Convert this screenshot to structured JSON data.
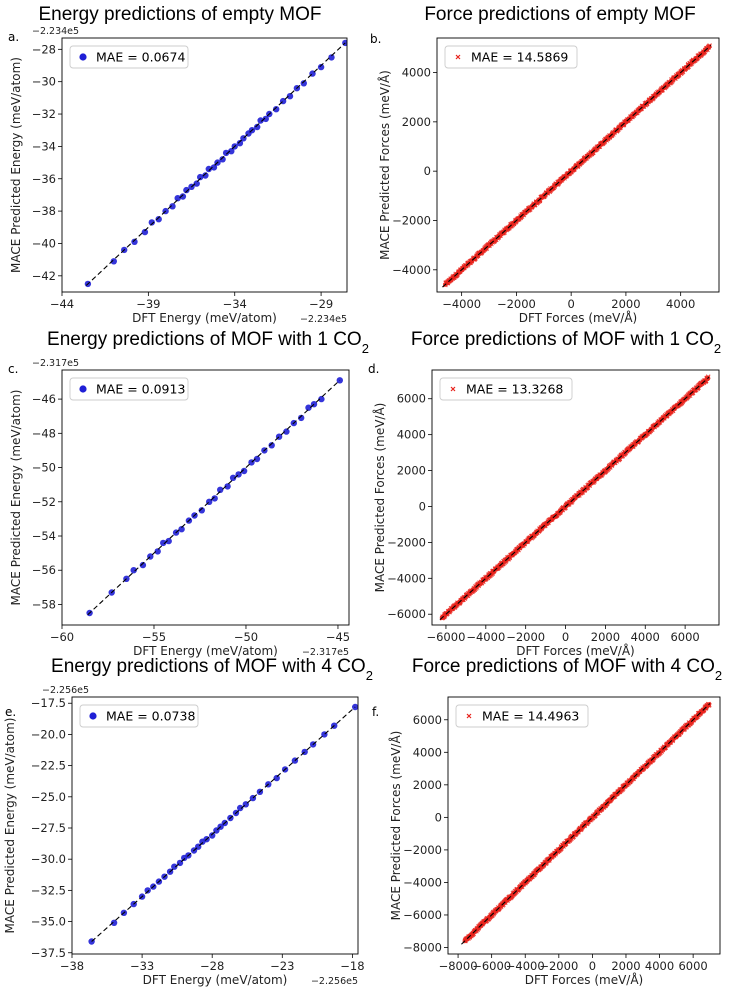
{
  "chart_data": [
    {
      "id": "a",
      "type": "scatter",
      "panel_label": "a.",
      "title": "Energy predictions of empty MOF",
      "xlabel": "DFT Energy (meV/atom)",
      "ylabel": "MACE Predicted Energy (meV/atom)",
      "x_offset_label": "−2.234e5",
      "y_offset_label": "−2.234e5",
      "xlim": [
        -44,
        -27.5
      ],
      "ylim": [
        -43,
        -27.3
      ],
      "xticks": [
        -44,
        -39,
        -34,
        -29
      ],
      "yticks": [
        -42,
        -40,
        -38,
        -36,
        -34,
        -32,
        -30,
        -28
      ],
      "legend": "MAE = 0.0674",
      "legend_position": "top-left",
      "marker": "circle",
      "color": "#1f1fd6",
      "reference_line": [
        -42.6,
        -27.6
      ],
      "points": [
        [
          -42.5,
          -42.5
        ],
        [
          -41.0,
          -41.1
        ],
        [
          -40.4,
          -40.4
        ],
        [
          -39.8,
          -39.9
        ],
        [
          -39.2,
          -39.3
        ],
        [
          -38.8,
          -38.7
        ],
        [
          -38.4,
          -38.5
        ],
        [
          -38.0,
          -38.0
        ],
        [
          -37.6,
          -37.7
        ],
        [
          -37.3,
          -37.2
        ],
        [
          -37.0,
          -37.1
        ],
        [
          -36.8,
          -36.7
        ],
        [
          -36.5,
          -36.5
        ],
        [
          -36.2,
          -36.3
        ],
        [
          -36.0,
          -35.9
        ],
        [
          -35.7,
          -35.8
        ],
        [
          -35.5,
          -35.4
        ],
        [
          -35.2,
          -35.3
        ],
        [
          -35.0,
          -35.0
        ],
        [
          -34.7,
          -34.8
        ],
        [
          -34.5,
          -34.4
        ],
        [
          -34.2,
          -34.3
        ],
        [
          -34.0,
          -34.0
        ],
        [
          -33.7,
          -33.8
        ],
        [
          -33.5,
          -33.5
        ],
        [
          -33.2,
          -33.2
        ],
        [
          -33.0,
          -33.0
        ],
        [
          -32.7,
          -32.8
        ],
        [
          -32.5,
          -32.4
        ],
        [
          -32.2,
          -32.3
        ],
        [
          -32.0,
          -32.0
        ],
        [
          -31.6,
          -31.7
        ],
        [
          -31.2,
          -31.2
        ],
        [
          -30.8,
          -30.9
        ],
        [
          -30.4,
          -30.4
        ],
        [
          -30.0,
          -30.1
        ],
        [
          -29.5,
          -29.5
        ],
        [
          -29.0,
          -29.1
        ],
        [
          -28.4,
          -28.5
        ],
        [
          -27.6,
          -27.6
        ]
      ]
    },
    {
      "id": "b",
      "type": "scatter",
      "panel_label": "b.",
      "title": "Force predictions of empty MOF",
      "xlabel": "DFT Forces (meV/Å)",
      "ylabel": "MACE Predicted Forces (meV/Å)",
      "xlim": [
        -4900,
        5400
      ],
      "ylim": [
        -4900,
        5400
      ],
      "xticks": [
        -4000,
        -2000,
        0,
        2000,
        4000
      ],
      "yticks": [
        -4000,
        -2000,
        0,
        2000,
        4000
      ],
      "legend": "MAE = 14.5869",
      "legend_position": "top-left",
      "marker": "cross",
      "color": "#e8231c",
      "reference_line": [
        -4700,
        5100
      ],
      "range": [
        -4600,
        5050
      ]
    },
    {
      "id": "c",
      "type": "scatter",
      "panel_label": "c.",
      "title": "Energy predictions of MOF with 1 CO",
      "title_sub": "2",
      "xlabel": "DFT Energy (meV/atom)",
      "ylabel": "MACE Predicted Energy (meV/atom)",
      "x_offset_label": "−2.317e5",
      "y_offset_label": "−2.317e5",
      "xlim": [
        -60,
        -44.4
      ],
      "ylim": [
        -59.2,
        -44.3
      ],
      "xticks": [
        -60,
        -55,
        -50,
        -45
      ],
      "yticks": [
        -58,
        -56,
        -54,
        -52,
        -50,
        -48,
        -46
      ],
      "legend": "MAE = 0.0913",
      "legend_position": "top-left",
      "marker": "circle",
      "color": "#1f1fd6",
      "reference_line": [
        -58.6,
        -44.9
      ],
      "points": [
        [
          -58.5,
          -58.5
        ],
        [
          -57.3,
          -57.3
        ],
        [
          -56.5,
          -56.5
        ],
        [
          -56.1,
          -56.0
        ],
        [
          -55.6,
          -55.7
        ],
        [
          -55.2,
          -55.2
        ],
        [
          -54.8,
          -54.9
        ],
        [
          -54.5,
          -54.4
        ],
        [
          -54.2,
          -54.3
        ],
        [
          -53.8,
          -53.8
        ],
        [
          -53.5,
          -53.6
        ],
        [
          -53.1,
          -53.1
        ],
        [
          -52.8,
          -52.8
        ],
        [
          -52.4,
          -52.5
        ],
        [
          -52.0,
          -52.0
        ],
        [
          -51.7,
          -51.8
        ],
        [
          -51.4,
          -51.3
        ],
        [
          -51.0,
          -51.1
        ],
        [
          -50.7,
          -50.6
        ],
        [
          -50.4,
          -50.4
        ],
        [
          -50.1,
          -50.2
        ],
        [
          -49.7,
          -49.7
        ],
        [
          -49.4,
          -49.5
        ],
        [
          -49.0,
          -49.0
        ],
        [
          -48.6,
          -48.7
        ],
        [
          -48.2,
          -48.2
        ],
        [
          -47.8,
          -47.9
        ],
        [
          -47.4,
          -47.4
        ],
        [
          -47.0,
          -47.1
        ],
        [
          -46.6,
          -46.5
        ],
        [
          -46.3,
          -46.3
        ],
        [
          -45.9,
          -46.0
        ],
        [
          -44.9,
          -44.9
        ]
      ]
    },
    {
      "id": "d",
      "type": "scatter",
      "panel_label": "d.",
      "title": "Force predictions of MOF with 1 CO",
      "title_sub": "2",
      "xlabel": "DFT Forces (meV/Å)",
      "ylabel": "MACE Predicted Forces (meV/Å)",
      "xlim": [
        -6700,
        7700
      ],
      "ylim": [
        -6600,
        7600
      ],
      "xticks": [
        -6000,
        -4000,
        -2000,
        0,
        2000,
        4000,
        6000
      ],
      "yticks": [
        -6000,
        -4000,
        -2000,
        0,
        2000,
        4000,
        6000
      ],
      "legend": "MAE = 13.3268",
      "legend_position": "top-left",
      "marker": "cross",
      "color": "#e8231c",
      "reference_line": [
        -6300,
        7200
      ],
      "range": [
        -6200,
        7150
      ]
    },
    {
      "id": "e",
      "type": "scatter",
      "panel_label": "e.",
      "title": "Energy predictions of MOF with 4 CO",
      "title_sub": "2",
      "xlabel": "DFT Energy (meV/atom)",
      "ylabel": "MACE Predicted Energy (meV/atom)",
      "x_offset_label": "−2.256e5",
      "y_offset_label": "−2.256e5",
      "xlim": [
        -38,
        -17.6
      ],
      "ylim": [
        -37.6,
        -17
      ],
      "xticks": [
        -38,
        -33,
        -28,
        -23,
        -18
      ],
      "yticks": [
        -37.5,
        -35.0,
        -32.5,
        -30.0,
        -27.5,
        -25.0,
        -22.5,
        -20.0,
        -17.5
      ],
      "ytick_labels": [
        "−37.5",
        "−35.0",
        "−32.5",
        "−30.0",
        "−27.5",
        "−25.0",
        "−22.5",
        "−20.0",
        "−17.5"
      ],
      "legend": "MAE = 0.0738",
      "legend_position": "top-left",
      "marker": "circle",
      "color": "#1f1fd6",
      "reference_line": [
        -36.6,
        -17.8
      ],
      "points": [
        [
          -36.6,
          -36.6
        ],
        [
          -35.0,
          -35.1
        ],
        [
          -34.3,
          -34.3
        ],
        [
          -33.6,
          -33.6
        ],
        [
          -33.0,
          -33.0
        ],
        [
          -32.6,
          -32.5
        ],
        [
          -32.2,
          -32.2
        ],
        [
          -31.8,
          -31.8
        ],
        [
          -31.4,
          -31.4
        ],
        [
          -31.0,
          -31.0
        ],
        [
          -30.7,
          -30.6
        ],
        [
          -30.3,
          -30.3
        ],
        [
          -30.0,
          -29.9
        ],
        [
          -29.7,
          -29.7
        ],
        [
          -29.3,
          -29.3
        ],
        [
          -29.0,
          -29.0
        ],
        [
          -28.7,
          -28.6
        ],
        [
          -28.4,
          -28.4
        ],
        [
          -28.0,
          -28.1
        ],
        [
          -27.7,
          -27.7
        ],
        [
          -27.4,
          -27.4
        ],
        [
          -27.1,
          -27.1
        ],
        [
          -26.7,
          -26.7
        ],
        [
          -26.3,
          -26.3
        ],
        [
          -26.0,
          -25.9
        ],
        [
          -25.6,
          -25.6
        ],
        [
          -25.1,
          -25.1
        ],
        [
          -24.6,
          -24.6
        ],
        [
          -24.0,
          -24.0
        ],
        [
          -23.4,
          -23.5
        ],
        [
          -22.8,
          -22.8
        ],
        [
          -22.1,
          -22.1
        ],
        [
          -21.4,
          -21.4
        ],
        [
          -20.8,
          -20.8
        ],
        [
          -20.0,
          -20.0
        ],
        [
          -19.3,
          -19.3
        ],
        [
          -17.8,
          -17.8
        ]
      ]
    },
    {
      "id": "f",
      "type": "scatter",
      "panel_label": "f.",
      "title": "Force predictions of MOF with 4 CO",
      "title_sub": "2",
      "xlabel": "DFT Forces (meV/Å)",
      "ylabel": "MACE Predicted Forces (meV/Å)",
      "xlim": [
        -8600,
        7600
      ],
      "ylim": [
        -8400,
        7400
      ],
      "xticks": [
        -8000,
        -6000,
        -4000,
        -2000,
        0,
        2000,
        4000,
        6000
      ],
      "yticks": [
        -8000,
        -6000,
        -4000,
        -2000,
        0,
        2000,
        4000,
        6000
      ],
      "legend": "MAE = 14.4963",
      "legend_position": "top-left",
      "marker": "cross",
      "color": "#e8231c",
      "reference_line": [
        -7800,
        7000
      ],
      "range": [
        -7600,
        6950
      ]
    }
  ]
}
